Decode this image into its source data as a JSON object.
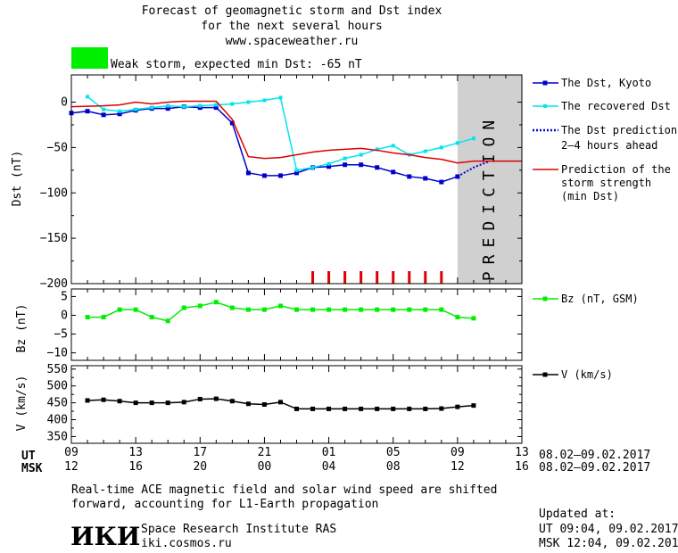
{
  "header": {
    "title_line1": "Forecast of geomagnetic storm and Dst index",
    "title_line2": "for the next several hours",
    "url": "www.spaceweather.ru",
    "status_text": "Weak storm, expected min Dst: -65 nT",
    "status_color": "#00ee00"
  },
  "axes": {
    "dst_ylabel": "Dst (nT)",
    "bz_ylabel": "Bz (nT)",
    "v_ylabel": "V (km/s)",
    "prediction_label": "PREDICTION",
    "ut_label": "UT",
    "msk_label": "MSK",
    "ut_ticks": [
      "09",
      "13",
      "17",
      "21",
      "01",
      "05",
      "09",
      "13"
    ],
    "msk_ticks": [
      "12",
      "16",
      "20",
      "00",
      "04",
      "08",
      "12",
      "16"
    ],
    "ut_range": "08.02–09.02.2017",
    "msk_range": "08.02–09.02.2017",
    "dst_yticks": [
      "0",
      "−50",
      "−100",
      "−150",
      "−200"
    ],
    "bz_yticks": [
      "5",
      "0",
      "−5",
      "−10"
    ],
    "v_yticks": [
      "550",
      "500",
      "450",
      "400",
      "350"
    ]
  },
  "legend": {
    "dst_kyoto": "The Dst, Kyoto",
    "recovered": "The recovered Dst",
    "pred_line1": "The Dst prediction",
    "pred_line2": "2–4 hours ahead",
    "storm_line1": "Prediction of the",
    "storm_line2": "storm strength",
    "storm_line3": "(min Dst)",
    "bz": "Bz (nT, GSM)",
    "v": "V (km/s)"
  },
  "footer": {
    "note_line1": "Real-time ACE magnetic field and solar wind speed are shifted",
    "note_line2": "forward, accounting for L1-Earth propagation",
    "logo": "ИКИ",
    "institute": "Space Research Institute RAS",
    "site": "iki.cosmos.ru",
    "updated_label": "Updated at:",
    "updated_ut": "UT   09:04, 09.02.2017",
    "updated_msk": "MSK 12:04, 09.02.2017"
  },
  "colors": {
    "dst": "#0000cc",
    "recovered": "#00e5ee",
    "prediction": "#0000cc",
    "storm": "#dd0000",
    "bz": "#00ee00",
    "v": "#000000",
    "prediction_band": "#d0d0d0"
  },
  "chart_data": [
    {
      "type": "line",
      "title": "Forecast of geomagnetic storm and Dst index",
      "ylabel": "Dst (nT)",
      "x_unit": "hours UT from 08.02.2017 09:00",
      "xlim": [
        0,
        28
      ],
      "ylim": [
        -200,
        30
      ],
      "series": [
        {
          "name": "The Dst, Kyoto",
          "x": [
            0,
            1,
            2,
            3,
            4,
            5,
            6,
            7,
            8,
            9,
            10,
            11,
            12,
            13,
            14,
            15,
            16,
            17,
            18,
            19,
            20,
            21,
            22,
            23,
            24
          ],
          "y": [
            -12,
            -10,
            -14,
            -13,
            -9,
            -7,
            -7,
            -5,
            -6,
            -6,
            -23,
            -78,
            -81,
            -81,
            -78,
            -72,
            -71,
            -69,
            -69,
            -72,
            -77,
            -82,
            -84,
            -88,
            -82
          ]
        },
        {
          "name": "The recovered Dst",
          "x": [
            1,
            2,
            3,
            4,
            5,
            6,
            7,
            8,
            9,
            10,
            11,
            12,
            13,
            14,
            15,
            16,
            17,
            18,
            19,
            20,
            21,
            22,
            23,
            24,
            25
          ],
          "y": [
            6,
            -8,
            -10,
            -8,
            -6,
            -4,
            -5,
            -4,
            -3,
            -2,
            0,
            2,
            5,
            -75,
            -72,
            -68,
            -62,
            -58,
            -52,
            -48,
            -58,
            -54,
            -50,
            -45,
            -40
          ]
        },
        {
          "name": "The Dst prediction 2–4 hours ahead",
          "x": [
            24,
            25,
            26
          ],
          "y": [
            -82,
            -72,
            -65
          ]
        },
        {
          "name": "Prediction of the storm strength (min Dst)",
          "x": [
            0,
            2,
            3,
            4,
            5,
            6,
            7,
            9,
            10,
            11,
            12,
            13,
            14,
            15,
            16,
            17,
            18,
            19,
            20,
            21,
            22,
            23,
            24,
            25,
            28
          ],
          "y": [
            -5,
            -4,
            -3,
            0,
            -2,
            0,
            1,
            1,
            -19,
            -60,
            -62,
            -61,
            -58,
            -55,
            -53,
            -52,
            -51,
            -53,
            -56,
            -58,
            -61,
            -63,
            -67,
            -65,
            -65
          ]
        }
      ],
      "annotations": {
        "storm_markers_x": [
          15,
          16,
          17,
          18,
          19,
          20,
          21,
          22,
          23
        ],
        "prediction_band_x": [
          24,
          28
        ]
      }
    },
    {
      "type": "line",
      "ylabel": "Bz (nT)",
      "ylim": [
        -12,
        7
      ],
      "series": [
        {
          "name": "Bz (nT, GSM)",
          "x": [
            1,
            2,
            3,
            4,
            5,
            6,
            7,
            8,
            9,
            10,
            11,
            12,
            13,
            14,
            15,
            16,
            17,
            18,
            19,
            20,
            21,
            22,
            23,
            24,
            25
          ],
          "y": [
            -0.5,
            -0.5,
            1.5,
            1.5,
            -0.5,
            -1.5,
            2,
            2.5,
            3.5,
            2,
            1.5,
            1.5,
            2.5,
            1.5,
            1.5,
            1.5,
            1.5,
            1.5,
            1.5,
            1.5,
            1.5,
            1.5,
            1.5,
            -0.5,
            -0.8
          ]
        }
      ]
    },
    {
      "type": "line",
      "ylabel": "V (km/s)",
      "ylim": [
        330,
        560
      ],
      "series": [
        {
          "name": "V (km/s)",
          "x": [
            1,
            2,
            3,
            4,
            5,
            6,
            7,
            8,
            9,
            10,
            11,
            12,
            13,
            14,
            15,
            16,
            17,
            18,
            19,
            20,
            21,
            22,
            23,
            24,
            25
          ],
          "y": [
            457,
            459,
            455,
            450,
            450,
            450,
            452,
            461,
            462,
            455,
            447,
            445,
            452,
            432,
            432,
            432,
            432,
            432,
            432,
            432,
            432,
            432,
            433,
            438,
            442
          ]
        }
      ]
    }
  ]
}
